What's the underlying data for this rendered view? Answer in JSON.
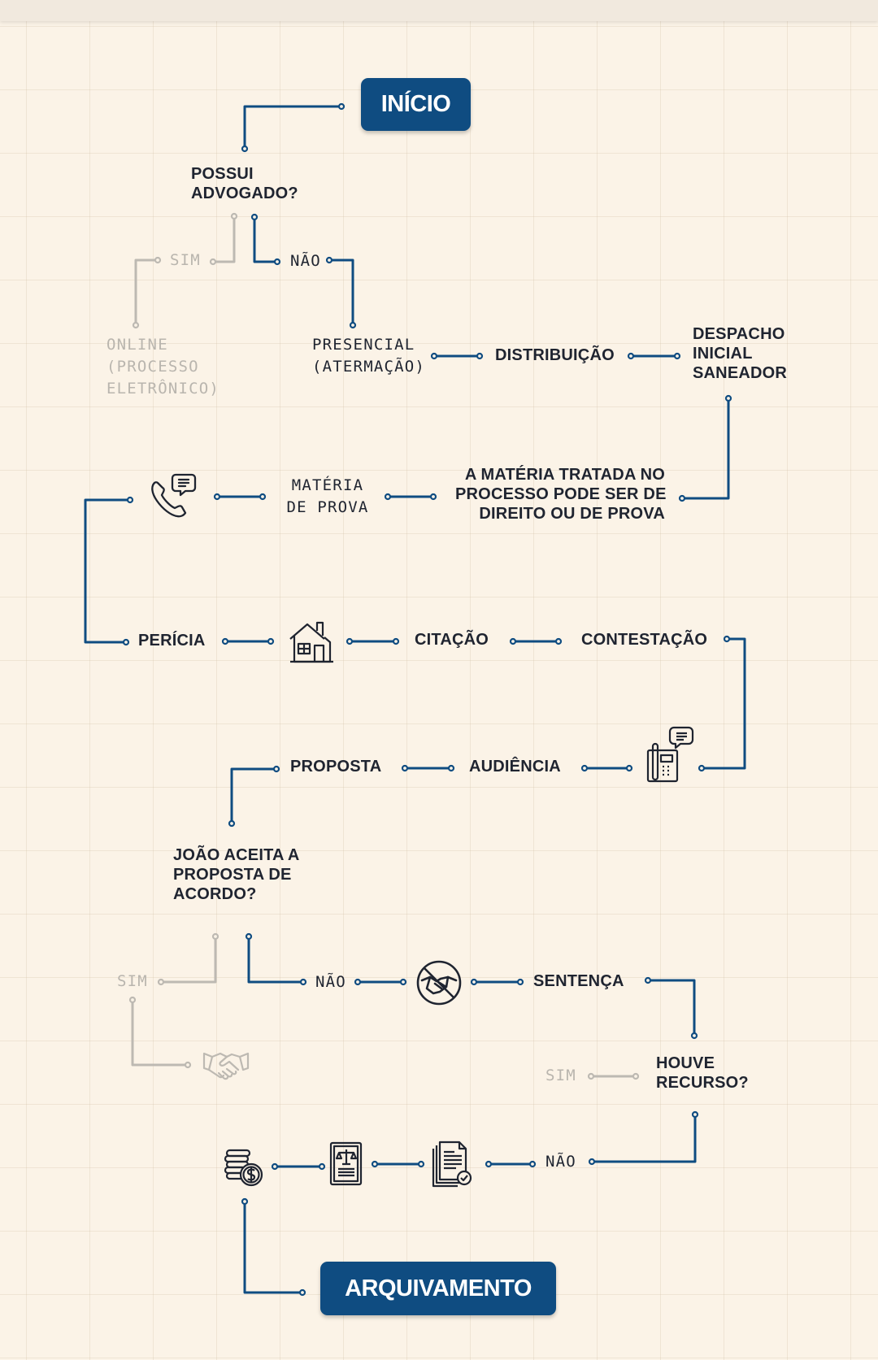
{
  "nodes": {
    "inicio": "INÍCIO",
    "possui_advogado": [
      "POSSUI",
      "ADVOGADO?"
    ],
    "sim_1": "SIM",
    "nao_1": "NÃO",
    "online": [
      "ONLINE",
      "(PROCESSO",
      "ELETRÔNICO)"
    ],
    "presencial": [
      "PRESENCIAL",
      "(ATERMAÇÃO)"
    ],
    "distribuicao": "DISTRIBUIÇÃO",
    "despacho": [
      "DESPACHO",
      "INICIAL",
      "SANEADOR"
    ],
    "materia_tratada": [
      "A MATÉRIA TRATADA NO",
      "PROCESSO PODE SER DE",
      "DIREITO OU DE PROVA"
    ],
    "materia_prova": [
      "MATÉRIA",
      "DE PROVA"
    ],
    "pericia": "PERÍCIA",
    "citacao": "CITAÇÃO",
    "contestacao": "CONTESTAÇÃO",
    "proposta": "PROPOSTA",
    "audiencia": "AUDIÊNCIA",
    "joao_aceita": [
      "JOÃO ACEITA A",
      "PROPOSTA DE",
      "ACORDO?"
    ],
    "sim_2": "SIM",
    "nao_2": "NÃO",
    "sentenca": "SENTENÇA",
    "houve_recurso": [
      "HOUVE",
      "RECURSO?"
    ],
    "sim_3": "SIM",
    "nao_3": "NÃO",
    "arquivamento": "ARQUIVAMENTO"
  },
  "icons": [
    "phone-chat-icon",
    "house-icon",
    "telephone-chat-icon",
    "no-handshake-icon",
    "handshake-icon",
    "coins-dollar-icon",
    "legal-document-icon",
    "approved-documents-icon"
  ],
  "colors": {
    "background": "#fbf3e7",
    "primary": "#0f4c81",
    "text": "#1f2430",
    "faded": "#b9b5ae"
  }
}
